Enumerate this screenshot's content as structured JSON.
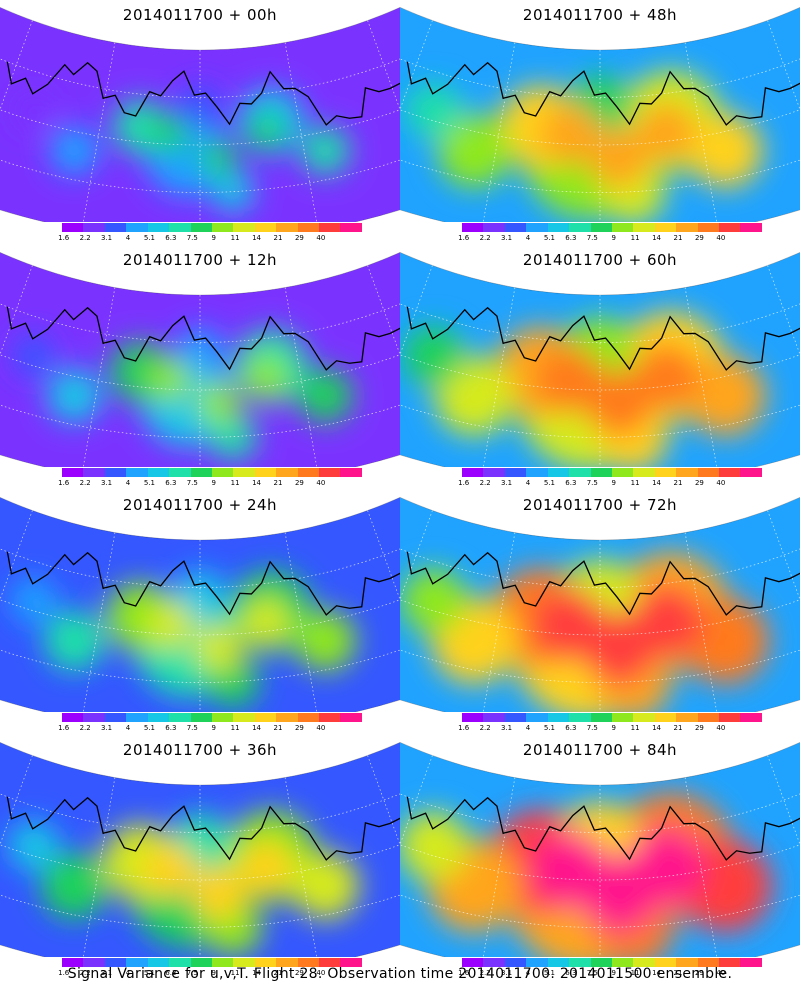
{
  "panels": [
    {
      "title": "2014011700 + 00h",
      "level": 0
    },
    {
      "title": "2014011700 + 48h",
      "level": 4
    },
    {
      "title": "2014011700 + 12h",
      "level": 1
    },
    {
      "title": "2014011700 + 60h",
      "level": 5
    },
    {
      "title": "2014011700 + 24h",
      "level": 2
    },
    {
      "title": "2014011700 + 72h",
      "level": 6
    },
    {
      "title": "2014011700 + 36h",
      "level": 3
    },
    {
      "title": "2014011700 + 84h",
      "level": 7
    }
  ],
  "colorbar": {
    "colors": [
      "#9b00ff",
      "#7a33ff",
      "#3457ff",
      "#1fa3ff",
      "#16c7e6",
      "#1ee0a8",
      "#1ed25a",
      "#8fe81e",
      "#d6ea1e",
      "#ffd21e",
      "#ffa51e",
      "#ff7a1e",
      "#ff3c3c",
      "#ff148c"
    ],
    "labels": [
      "1.6",
      "2.2",
      "3.1",
      "4",
      "5.1",
      "6.3",
      "7.5",
      "9",
      "11",
      "14",
      "21",
      "29",
      "40"
    ]
  },
  "caption": "Signal Variance for u,v,T. Flight 28. Observation time 2014011700. 2014011500 ensemble."
}
